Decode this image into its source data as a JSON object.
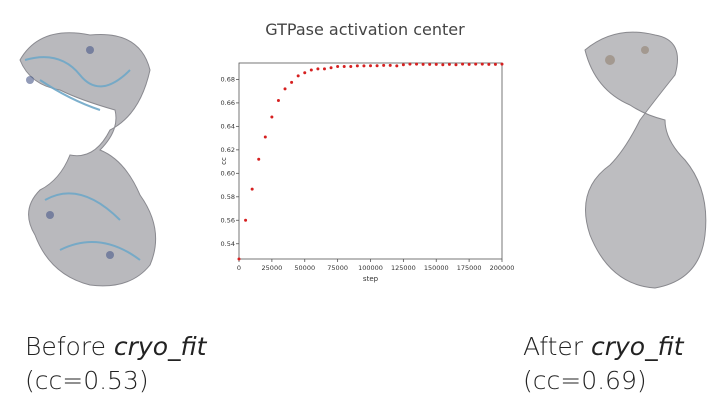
{
  "slide": {
    "left_caption": {
      "prefix": "Before ",
      "tool": "cryo_fit",
      "cc": "(cc=0.53)"
    },
    "right_caption": {
      "prefix": "After ",
      "tool": "cryo_fit",
      "cc": "(cc=0.69)"
    },
    "left_image": "density map with atomic model before fitting",
    "right_image": "density map with atomic model after fitting"
  },
  "chart_data": {
    "type": "scatter",
    "title": "GTPase activation center",
    "xlabel": "step",
    "ylabel": "cc",
    "xlim": [
      0,
      200000
    ],
    "ylim": [
      0.527,
      0.694
    ],
    "xticks": [
      0,
      25000,
      50000,
      75000,
      100000,
      125000,
      150000,
      175000,
      200000
    ],
    "yticks": [
      0.54,
      0.56,
      0.58,
      0.6,
      0.62,
      0.64,
      0.66,
      0.68
    ],
    "marker_color": "#d62020",
    "grid": false,
    "x": [
      0,
      5000,
      10000,
      15000,
      20000,
      25000,
      30000,
      35000,
      40000,
      45000,
      50000,
      55000,
      60000,
      65000,
      70000,
      75000,
      80000,
      85000,
      90000,
      95000,
      100000,
      105000,
      110000,
      115000,
      120000,
      125000,
      130000,
      135000,
      140000,
      145000,
      150000,
      155000,
      160000,
      165000,
      170000,
      175000,
      180000,
      185000,
      190000,
      195000,
      200000
    ],
    "y": [
      0.527,
      0.56,
      0.5865,
      0.612,
      0.631,
      0.648,
      0.662,
      0.672,
      0.6775,
      0.683,
      0.6857,
      0.688,
      0.689,
      0.689,
      0.69,
      0.691,
      0.691,
      0.691,
      0.6915,
      0.6915,
      0.6917,
      0.6917,
      0.692,
      0.692,
      0.6915,
      0.6925,
      0.693,
      0.693,
      0.6928,
      0.6928,
      0.6928,
      0.6925,
      0.6928,
      0.6925,
      0.693,
      0.6928,
      0.693,
      0.693,
      0.6928,
      0.6928,
      0.693
    ]
  }
}
